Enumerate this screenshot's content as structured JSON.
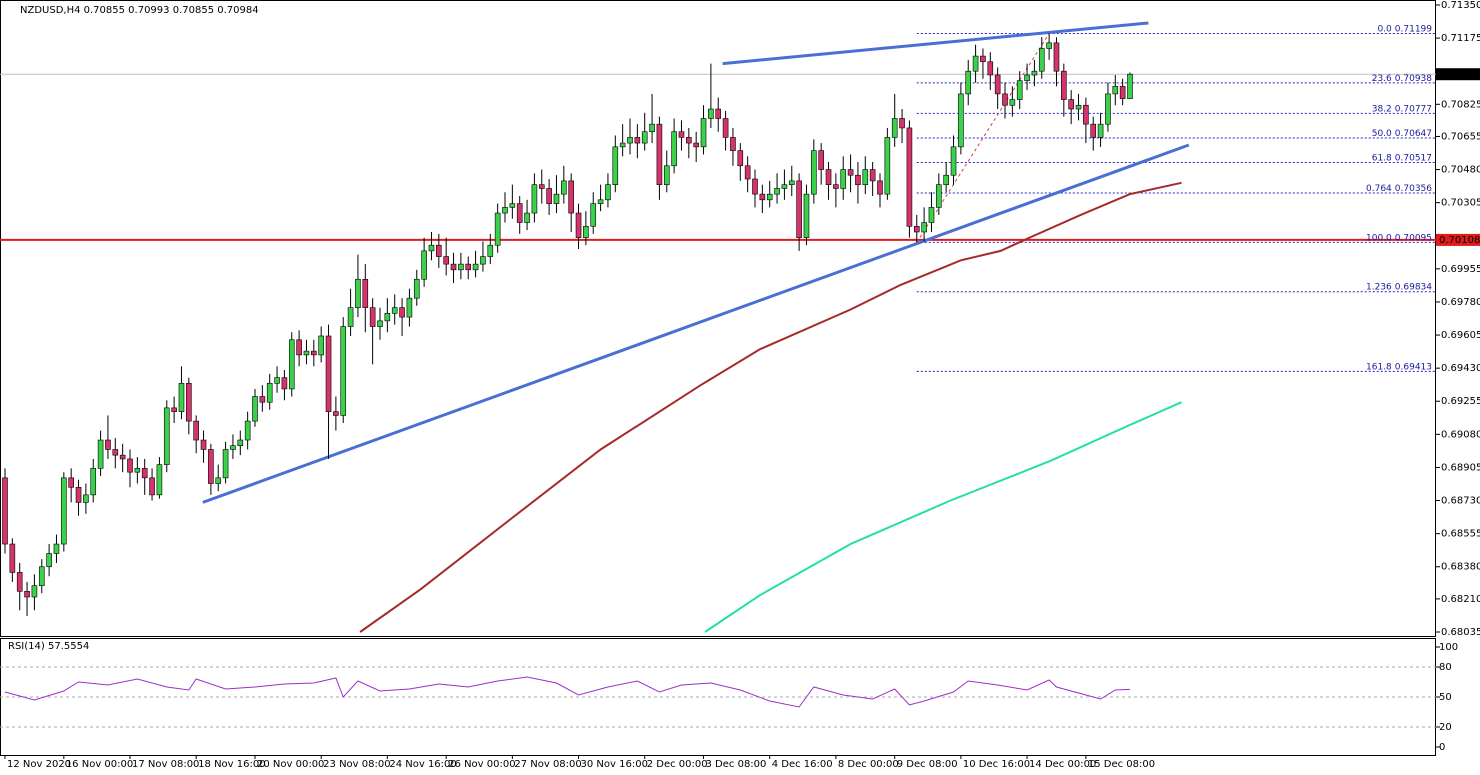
{
  "chart_data": {
    "type": "candlestick",
    "title": "NZDUSD,H4 0.70855 0.70993 0.70855 0.70984",
    "up_color": "#3bd14a",
    "down_color": "#d6336c",
    "xlim": [
      0,
      153
    ],
    "ylim": [
      0.68035,
      0.7135
    ],
    "yticks": [
      {
        "value": 0.7135,
        "label": "0.71350"
      },
      0.71175,
      0.70825,
      0.70655,
      {
        "value": 0.7048,
        "label": "0.70480"
      },
      0.70305,
      0.69955,
      {
        "value": 0.6978,
        "label": "0.69780"
      },
      0.69605,
      {
        "value": 0.6943,
        "label": "0.69430"
      },
      0.69255,
      {
        "value": 0.6908,
        "label": "0.69080"
      },
      0.68905,
      {
        "value": 0.6873,
        "label": "0.68730"
      },
      0.68555,
      {
        "value": 0.6838,
        "label": "0.68380"
      },
      {
        "value": 0.6821,
        "label": "0.68210"
      },
      0.68035
    ],
    "xticks": [
      {
        "value": 0,
        "label": "12 Nov 2020"
      },
      {
        "value": 8,
        "label": "16 Nov 00:00"
      },
      {
        "value": 17,
        "label": "17 Nov 08:00"
      },
      {
        "value": 26,
        "label": "18 Nov 16:00"
      },
      {
        "value": 34,
        "label": "20 Nov 00:00"
      },
      {
        "value": 43,
        "label": "23 Nov 08:00"
      },
      {
        "value": 52,
        "label": "24 Nov 16:00"
      },
      {
        "value": 60,
        "label": "26 Nov 00:00"
      },
      {
        "value": 69,
        "label": "27 Nov 08:00"
      },
      {
        "value": 78,
        "label": "30 Nov 16:00"
      },
      {
        "value": 87,
        "label": "2 Dec 00:00"
      },
      {
        "value": 95,
        "label": "3 Dec 08:00"
      },
      {
        "value": 104,
        "label": "4 Dec 16:00"
      },
      {
        "value": 113,
        "label": "8 Dec 00:00"
      },
      {
        "value": 121,
        "label": "9 Dec 08:00"
      },
      {
        "value": 130,
        "label": "10 Dec 16:00"
      },
      {
        "value": 139,
        "label": "14 Dec 00:00"
      },
      {
        "value": 147,
        "label": "15 Dec 08:00"
      }
    ],
    "candles": [
      [
        0.6885,
        0.689,
        0.6845,
        0.685
      ],
      [
        0.685,
        0.6853,
        0.683,
        0.6835
      ],
      [
        0.6835,
        0.684,
        0.6815,
        0.6825
      ],
      [
        0.6825,
        0.683,
        0.6812,
        0.6822
      ],
      [
        0.6822,
        0.6834,
        0.6815,
        0.6828
      ],
      [
        0.6828,
        0.6842,
        0.6824,
        0.6838
      ],
      [
        0.6838,
        0.685,
        0.6833,
        0.6845
      ],
      [
        0.6845,
        0.6855,
        0.684,
        0.685
      ],
      [
        0.685,
        0.6888,
        0.6846,
        0.6885
      ],
      [
        0.6885,
        0.689,
        0.6872,
        0.688
      ],
      [
        0.688,
        0.6884,
        0.6865,
        0.6872
      ],
      [
        0.6872,
        0.6882,
        0.6866,
        0.6876
      ],
      [
        0.6876,
        0.6895,
        0.6872,
        0.689
      ],
      [
        0.689,
        0.691,
        0.6886,
        0.6905
      ],
      [
        0.6905,
        0.6918,
        0.6895,
        0.69
      ],
      [
        0.69,
        0.6906,
        0.689,
        0.6897
      ],
      [
        0.6897,
        0.6903,
        0.6888,
        0.6895
      ],
      [
        0.6895,
        0.69,
        0.688,
        0.6888
      ],
      [
        0.6888,
        0.6896,
        0.6882,
        0.689
      ],
      [
        0.689,
        0.6895,
        0.6876,
        0.6885
      ],
      [
        0.6885,
        0.689,
        0.6873,
        0.6876
      ],
      [
        0.6876,
        0.6896,
        0.6874,
        0.6892
      ],
      [
        0.6892,
        0.6926,
        0.6888,
        0.6922
      ],
      [
        0.6922,
        0.6928,
        0.6914,
        0.692
      ],
      [
        0.692,
        0.6944,
        0.6916,
        0.6935
      ],
      [
        0.6935,
        0.6938,
        0.6908,
        0.6915
      ],
      [
        0.6915,
        0.6918,
        0.6898,
        0.6905
      ],
      [
        0.6905,
        0.691,
        0.6893,
        0.69
      ],
      [
        0.69,
        0.6903,
        0.6876,
        0.6882
      ],
      [
        0.6882,
        0.6892,
        0.6878,
        0.6885
      ],
      [
        0.6885,
        0.6904,
        0.6882,
        0.69
      ],
      [
        0.69,
        0.6908,
        0.6895,
        0.6902
      ],
      [
        0.6902,
        0.691,
        0.6897,
        0.6905
      ],
      [
        0.6905,
        0.692,
        0.69,
        0.6915
      ],
      [
        0.6915,
        0.6932,
        0.6912,
        0.6928
      ],
      [
        0.6928,
        0.6934,
        0.692,
        0.6925
      ],
      [
        0.6925,
        0.694,
        0.6921,
        0.6935
      ],
      [
        0.6935,
        0.6944,
        0.693,
        0.6938
      ],
      [
        0.6938,
        0.6942,
        0.6926,
        0.6932
      ],
      [
        0.6932,
        0.6962,
        0.6928,
        0.6958
      ],
      [
        0.6958,
        0.6963,
        0.6944,
        0.695
      ],
      [
        0.695,
        0.6958,
        0.6945,
        0.6952
      ],
      [
        0.6952,
        0.6958,
        0.6944,
        0.695
      ],
      [
        0.695,
        0.6965,
        0.6946,
        0.696
      ],
      [
        0.696,
        0.6966,
        0.6895,
        0.692
      ],
      [
        0.692,
        0.6928,
        0.691,
        0.6918
      ],
      [
        0.6918,
        0.697,
        0.6914,
        0.6965
      ],
      [
        0.6965,
        0.6985,
        0.696,
        0.6975
      ],
      [
        0.6975,
        0.7003,
        0.697,
        0.699
      ],
      [
        0.699,
        0.6998,
        0.6962,
        0.6975
      ],
      [
        0.6975,
        0.698,
        0.6945,
        0.6965
      ],
      [
        0.6965,
        0.6975,
        0.6958,
        0.6968
      ],
      [
        0.6968,
        0.698,
        0.6962,
        0.6972
      ],
      [
        0.6972,
        0.6982,
        0.6966,
        0.6975
      ],
      [
        0.6975,
        0.698,
        0.696,
        0.697
      ],
      [
        0.697,
        0.6985,
        0.6965,
        0.698
      ],
      [
        0.698,
        0.6995,
        0.6976,
        0.699
      ],
      [
        0.699,
        0.7012,
        0.6986,
        0.7005
      ],
      [
        0.7005,
        0.7015,
        0.7,
        0.7008
      ],
      [
        0.7008,
        0.7014,
        0.6996,
        0.7002
      ],
      [
        0.7002,
        0.7012,
        0.6992,
        0.6998
      ],
      [
        0.6998,
        0.7004,
        0.6988,
        0.6995
      ],
      [
        0.6995,
        0.7004,
        0.699,
        0.6998
      ],
      [
        0.6998,
        0.7002,
        0.699,
        0.6995
      ],
      [
        0.6995,
        0.7005,
        0.6991,
        0.6998
      ],
      [
        0.6998,
        0.701,
        0.6994,
        0.7002
      ],
      [
        0.7002,
        0.7014,
        0.6998,
        0.7008
      ],
      [
        0.7008,
        0.703,
        0.7004,
        0.7025
      ],
      [
        0.7025,
        0.7036,
        0.702,
        0.7028
      ],
      [
        0.7028,
        0.704,
        0.7022,
        0.703
      ],
      [
        0.703,
        0.7034,
        0.7014,
        0.702
      ],
      [
        0.702,
        0.7032,
        0.7016,
        0.7025
      ],
      [
        0.7025,
        0.7046,
        0.702,
        0.704
      ],
      [
        0.704,
        0.7048,
        0.703,
        0.7038
      ],
      [
        0.7038,
        0.7043,
        0.7024,
        0.703
      ],
      [
        0.703,
        0.7045,
        0.7025,
        0.7035
      ],
      [
        0.7035,
        0.705,
        0.703,
        0.7042
      ],
      [
        0.7042,
        0.7046,
        0.7015,
        0.7025
      ],
      [
        0.7025,
        0.703,
        0.7006,
        0.7012
      ],
      [
        0.7012,
        0.7026,
        0.7008,
        0.7018
      ],
      [
        0.7018,
        0.7036,
        0.7014,
        0.703
      ],
      [
        0.703,
        0.704,
        0.7026,
        0.7032
      ],
      [
        0.7032,
        0.7046,
        0.7028,
        0.704
      ],
      [
        0.704,
        0.7066,
        0.7036,
        0.706
      ],
      [
        0.706,
        0.7072,
        0.7055,
        0.7062
      ],
      [
        0.7062,
        0.7075,
        0.7056,
        0.7065
      ],
      [
        0.7065,
        0.7072,
        0.7054,
        0.7062
      ],
      [
        0.7062,
        0.7078,
        0.7058,
        0.7068
      ],
      [
        0.7068,
        0.7088,
        0.7062,
        0.7072
      ],
      [
        0.7072,
        0.7076,
        0.7032,
        0.704
      ],
      [
        0.704,
        0.7058,
        0.7036,
        0.705
      ],
      [
        0.705,
        0.7075,
        0.7046,
        0.7068
      ],
      [
        0.7068,
        0.7074,
        0.7058,
        0.7065
      ],
      [
        0.7065,
        0.707,
        0.7054,
        0.7062
      ],
      [
        0.7062,
        0.7068,
        0.7052,
        0.706
      ],
      [
        0.706,
        0.7082,
        0.7056,
        0.7075
      ],
      [
        0.7075,
        0.7104,
        0.707,
        0.708
      ],
      [
        0.708,
        0.7086,
        0.7068,
        0.7075
      ],
      [
        0.7075,
        0.7079,
        0.7058,
        0.7065
      ],
      [
        0.7065,
        0.707,
        0.705,
        0.7058
      ],
      [
        0.7058,
        0.7062,
        0.7042,
        0.705
      ],
      [
        0.705,
        0.7055,
        0.7036,
        0.7043
      ],
      [
        0.7043,
        0.7048,
        0.7028,
        0.7035
      ],
      [
        0.7035,
        0.704,
        0.7025,
        0.7032
      ],
      [
        0.7032,
        0.7042,
        0.7028,
        0.7035
      ],
      [
        0.7035,
        0.7046,
        0.703,
        0.7038
      ],
      [
        0.7038,
        0.7048,
        0.7032,
        0.704
      ],
      [
        0.704,
        0.705,
        0.7034,
        0.7042
      ],
      [
        0.7042,
        0.7046,
        0.7005,
        0.7012
      ],
      [
        0.7012,
        0.704,
        0.7008,
        0.7035
      ],
      [
        0.7035,
        0.7064,
        0.703,
        0.7058
      ],
      [
        0.7058,
        0.7062,
        0.704,
        0.7048
      ],
      [
        0.7048,
        0.7052,
        0.7032,
        0.704
      ],
      [
        0.704,
        0.7046,
        0.7028,
        0.7038
      ],
      [
        0.7038,
        0.7055,
        0.7032,
        0.7048
      ],
      [
        0.7048,
        0.7056,
        0.7036,
        0.7045
      ],
      [
        0.7045,
        0.7052,
        0.703,
        0.704
      ],
      [
        0.704,
        0.7055,
        0.7035,
        0.7048
      ],
      [
        0.7048,
        0.7052,
        0.7034,
        0.7042
      ],
      [
        0.7042,
        0.7046,
        0.7028,
        0.7035
      ],
      [
        0.7035,
        0.707,
        0.7032,
        0.7065
      ],
      [
        0.7065,
        0.7088,
        0.706,
        0.7075
      ],
      [
        0.7075,
        0.708,
        0.7062,
        0.707
      ],
      [
        0.707,
        0.7074,
        0.7012,
        0.7018
      ],
      [
        0.7018,
        0.7024,
        0.70095,
        0.7015
      ],
      [
        0.7015,
        0.7028,
        0.701,
        0.702
      ],
      [
        0.702,
        0.7036,
        0.7015,
        0.7028
      ],
      [
        0.7028,
        0.7046,
        0.7024,
        0.704
      ],
      [
        0.704,
        0.7052,
        0.7036,
        0.7045
      ],
      [
        0.7045,
        0.7066,
        0.704,
        0.706
      ],
      [
        0.706,
        0.7094,
        0.7056,
        0.7088
      ],
      [
        0.7088,
        0.7106,
        0.7082,
        0.71
      ],
      [
        0.71,
        0.7114,
        0.7094,
        0.7108
      ],
      [
        0.7108,
        0.7112,
        0.7096,
        0.7105
      ],
      [
        0.7105,
        0.711,
        0.709,
        0.7098
      ],
      [
        0.7098,
        0.7102,
        0.708,
        0.7088
      ],
      [
        0.7088,
        0.7094,
        0.7075,
        0.7082
      ],
      [
        0.7082,
        0.7092,
        0.7076,
        0.7085
      ],
      [
        0.7085,
        0.71,
        0.708,
        0.7095
      ],
      [
        0.7095,
        0.7104,
        0.709,
        0.7098
      ],
      [
        0.7098,
        0.7106,
        0.7092,
        0.71
      ],
      [
        0.71,
        0.7118,
        0.7096,
        0.7112
      ],
      [
        0.7112,
        0.71199,
        0.7106,
        0.7115
      ],
      [
        0.7115,
        0.7118,
        0.7092,
        0.71
      ],
      [
        0.71,
        0.7104,
        0.7076,
        0.7085
      ],
      [
        0.7085,
        0.709,
        0.7072,
        0.708
      ],
      [
        0.708,
        0.7088,
        0.7074,
        0.7082
      ],
      [
        0.7082,
        0.7086,
        0.7062,
        0.7072
      ],
      [
        0.7072,
        0.7076,
        0.7058,
        0.7065
      ],
      [
        0.7065,
        0.7078,
        0.706,
        0.7072
      ],
      [
        0.7072,
        0.7094,
        0.7068,
        0.7088
      ],
      [
        0.7088,
        0.7098,
        0.7082,
        0.7092
      ],
      [
        0.7092,
        0.7096,
        0.7082,
        0.70855
      ],
      [
        0.70855,
        0.70993,
        0.70855,
        0.70984
      ]
    ],
    "current_price": {
      "value": 0.70984,
      "label": "0.70984"
    },
    "support": {
      "value": 0.70108,
      "label": "0.70108",
      "color": "#e01b1b"
    },
    "fibonacci": {
      "from": 124,
      "color": "#2323c8",
      "levels": [
        {
          "level": "0.0",
          "price": 0.71199
        },
        {
          "level": "23.6",
          "price": 0.70938
        },
        {
          "level": "38.2",
          "price": 0.70777
        },
        {
          "level": "50.0",
          "price": 0.70647
        },
        {
          "level": "61.8",
          "price": 0.70517
        },
        {
          "level": "0.764",
          "price": 0.70356
        },
        {
          "level": "100.0",
          "price": 0.70095
        },
        {
          "level": "1.236",
          "price": 0.69834
        },
        {
          "level": "161.8",
          "price": 0.69413
        }
      ]
    },
    "fib_swing": {
      "color": "#d04040",
      "x": [
        124,
        142
      ],
      "values": [
        0.70095,
        0.71199
      ]
    },
    "trendlines": [
      {
        "color": "#4a6fd4",
        "x": [
          97.6,
          155.5
        ],
        "values": [
          0.7104,
          0.71255
        ]
      },
      {
        "color": "#4a6fd4",
        "x": [
          26.9,
          161
        ],
        "values": [
          0.6872,
          0.7061
        ]
      }
    ],
    "moving_averages": [
      {
        "color": "#a52a2a",
        "x": [
          48.3,
          56.5,
          68.7,
          81,
          94.6,
          102.7,
          115,
          121.8,
          130,
          135.4,
          139.5,
          146.3,
          153,
          160
        ],
        "values": [
          0.68035,
          0.6826,
          0.6863,
          0.69,
          0.6934,
          0.6953,
          0.6974,
          0.6987,
          0.7,
          0.7005,
          0.70123,
          0.7024,
          0.7035,
          0.7041
        ]
      },
      {
        "color": "#22e0a0",
        "x": [
          95.2,
          102.7,
          115,
          128.6,
          142.2,
          153,
          160
        ],
        "values": [
          0.68035,
          0.6823,
          0.685,
          0.6873,
          0.6894,
          0.6913,
          0.6925
        ]
      }
    ],
    "rsi": {
      "label": "RSI(14) 57.5554",
      "color": "#9b30c8",
      "ylim": [
        0,
        100
      ],
      "yticks": [
        100,
        80,
        50,
        20,
        0
      ],
      "levels": [
        80,
        50,
        20
      ],
      "x": [
        0,
        4,
        8,
        10,
        14,
        18,
        22,
        25,
        26,
        30,
        34,
        38,
        42,
        45,
        46,
        48,
        51,
        55,
        59,
        63,
        67,
        71,
        75,
        78,
        82,
        86,
        89,
        92,
        96,
        100,
        104,
        108,
        110,
        114,
        118,
        121,
        123,
        125,
        129,
        131,
        135,
        139,
        142,
        143,
        147,
        149,
        151,
        153
      ],
      "values": [
        55,
        47,
        56,
        65,
        62,
        68,
        60,
        57,
        68,
        58,
        60,
        63,
        64,
        69,
        50,
        66,
        56,
        58,
        63,
        60,
        66,
        70,
        64,
        52,
        60,
        66,
        55,
        62,
        64,
        57,
        46,
        40,
        60,
        52,
        48,
        58,
        42,
        46,
        55,
        66,
        62,
        57,
        67,
        60,
        52,
        48,
        57,
        57.5554
      ]
    }
  }
}
